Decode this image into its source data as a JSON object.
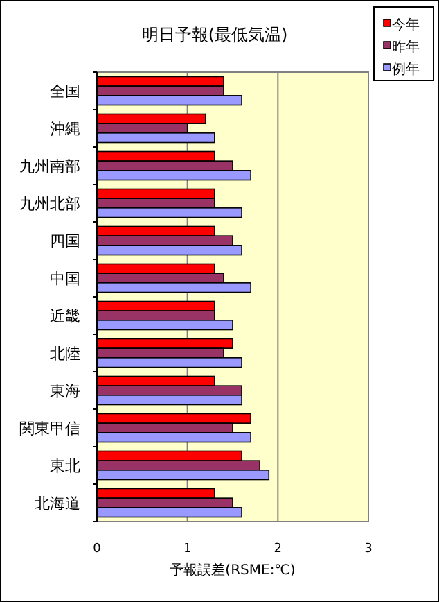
{
  "chart_data": {
    "type": "bar",
    "orientation": "horizontal",
    "title": "明日予報(最低気温)",
    "xlabel": "予報誤差(RSME:℃)",
    "categories": [
      "全国",
      "沖縄",
      "九州南部",
      "九州北部",
      "四国",
      "中国",
      "近畿",
      "北陸",
      "東海",
      "関東甲信",
      "東北",
      "北海道"
    ],
    "series": [
      {
        "name": "今年",
        "color": "#ff0000",
        "values": [
          1.4,
          1.2,
          1.3,
          1.3,
          1.3,
          1.3,
          1.3,
          1.5,
          1.3,
          1.7,
          1.6,
          1.3
        ]
      },
      {
        "name": "昨年",
        "color": "#993366",
        "values": [
          1.4,
          1.0,
          1.5,
          1.3,
          1.5,
          1.4,
          1.3,
          1.4,
          1.6,
          1.5,
          1.8,
          1.5
        ]
      },
      {
        "name": "例年",
        "color": "#9999ff",
        "values": [
          1.6,
          1.3,
          1.7,
          1.6,
          1.6,
          1.7,
          1.5,
          1.6,
          1.6,
          1.7,
          1.9,
          1.6
        ]
      }
    ],
    "xlim": [
      0,
      3
    ],
    "xticks": [
      0,
      1,
      2,
      3
    ],
    "grid": "x",
    "legend": "top right"
  }
}
